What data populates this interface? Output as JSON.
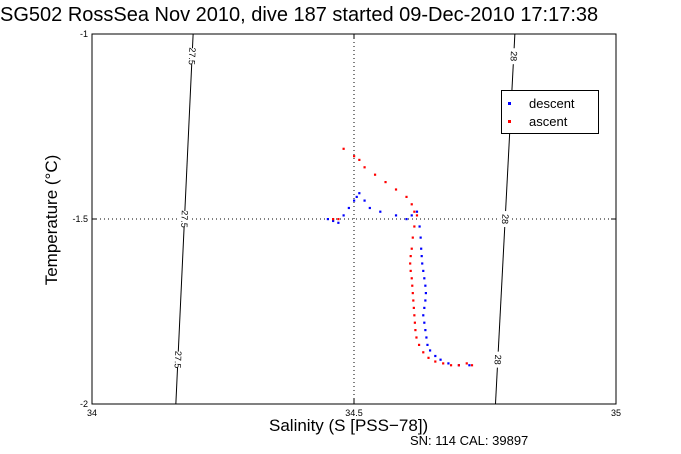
{
  "chart_data": {
    "type": "scatter",
    "title": "SG502 RossSea Nov 2010, dive 187 started 09-Dec-2010 17:17:38",
    "xlabel": "Salinity (S [PSS−78])",
    "ylabel": "Temperature (°C)",
    "xlim": [
      34,
      35
    ],
    "ylim": [
      -2,
      -1
    ],
    "xticks": [
      "34",
      "34.5",
      "35"
    ],
    "yticks": [
      "-1",
      "-1.5",
      "-2"
    ],
    "grid": "dotted lines at x=34.5 and y=-1.5",
    "legend_position": "top-right",
    "footer": "SN: 114  CAL: 39897",
    "isopycnals": [
      {
        "label": "27.5",
        "points": [
          [
            34.193,
            -1.0
          ],
          [
            34.16,
            -2.0
          ]
        ]
      },
      {
        "label": "28",
        "points": [
          [
            34.807,
            -1.0
          ],
          [
            34.77,
            -2.0
          ]
        ]
      }
    ],
    "series": [
      {
        "name": "descent",
        "color": "#0000ff",
        "points": [
          [
            34.45,
            -1.5
          ],
          [
            34.46,
            -1.505
          ],
          [
            34.47,
            -1.51
          ],
          [
            34.48,
            -1.49
          ],
          [
            34.49,
            -1.47
          ],
          [
            34.5,
            -1.45
          ],
          [
            34.505,
            -1.44
          ],
          [
            34.51,
            -1.43
          ],
          [
            34.52,
            -1.45
          ],
          [
            34.53,
            -1.47
          ],
          [
            34.55,
            -1.48
          ],
          [
            34.58,
            -1.49
          ],
          [
            34.6,
            -1.5
          ],
          [
            34.61,
            -1.49
          ],
          [
            34.62,
            -1.48
          ],
          [
            34.625,
            -1.52
          ],
          [
            34.627,
            -1.55
          ],
          [
            34.628,
            -1.58
          ],
          [
            34.629,
            -1.6
          ],
          [
            34.63,
            -1.62
          ],
          [
            34.632,
            -1.64
          ],
          [
            34.634,
            -1.66
          ],
          [
            34.636,
            -1.68
          ],
          [
            34.637,
            -1.7
          ],
          [
            34.636,
            -1.72
          ],
          [
            34.634,
            -1.74
          ],
          [
            34.632,
            -1.76
          ],
          [
            34.634,
            -1.78
          ],
          [
            34.636,
            -1.8
          ],
          [
            34.638,
            -1.82
          ],
          [
            34.64,
            -1.84
          ],
          [
            34.645,
            -1.855
          ],
          [
            34.655,
            -1.87
          ],
          [
            34.665,
            -1.88
          ],
          [
            34.68,
            -1.89
          ],
          [
            34.7,
            -1.895
          ],
          [
            34.72,
            -1.895
          ]
        ]
      },
      {
        "name": "ascent",
        "color": "#ff0000",
        "points": [
          [
            34.48,
            -1.31
          ],
          [
            34.5,
            -1.33
          ],
          [
            34.51,
            -1.34
          ],
          [
            34.52,
            -1.36
          ],
          [
            34.54,
            -1.38
          ],
          [
            34.56,
            -1.4
          ],
          [
            34.58,
            -1.42
          ],
          [
            34.6,
            -1.44
          ],
          [
            34.61,
            -1.46
          ],
          [
            34.615,
            -1.48
          ],
          [
            34.62,
            -1.49
          ],
          [
            34.615,
            -1.52
          ],
          [
            34.612,
            -1.55
          ],
          [
            34.61,
            -1.58
          ],
          [
            34.608,
            -1.6
          ],
          [
            34.607,
            -1.62
          ],
          [
            34.608,
            -1.64
          ],
          [
            34.61,
            -1.66
          ],
          [
            34.611,
            -1.68
          ],
          [
            34.612,
            -1.7
          ],
          [
            34.613,
            -1.72
          ],
          [
            34.614,
            -1.74
          ],
          [
            34.615,
            -1.76
          ],
          [
            34.616,
            -1.78
          ],
          [
            34.617,
            -1.8
          ],
          [
            34.619,
            -1.82
          ],
          [
            34.624,
            -1.84
          ],
          [
            34.632,
            -1.86
          ],
          [
            34.642,
            -1.875
          ],
          [
            34.655,
            -1.885
          ],
          [
            34.67,
            -1.89
          ],
          [
            34.685,
            -1.895
          ],
          [
            34.7,
            -1.895
          ],
          [
            34.715,
            -1.89
          ],
          [
            34.725,
            -1.895
          ],
          [
            34.47,
            -1.5
          ],
          [
            34.46,
            -1.5
          ]
        ]
      }
    ]
  }
}
